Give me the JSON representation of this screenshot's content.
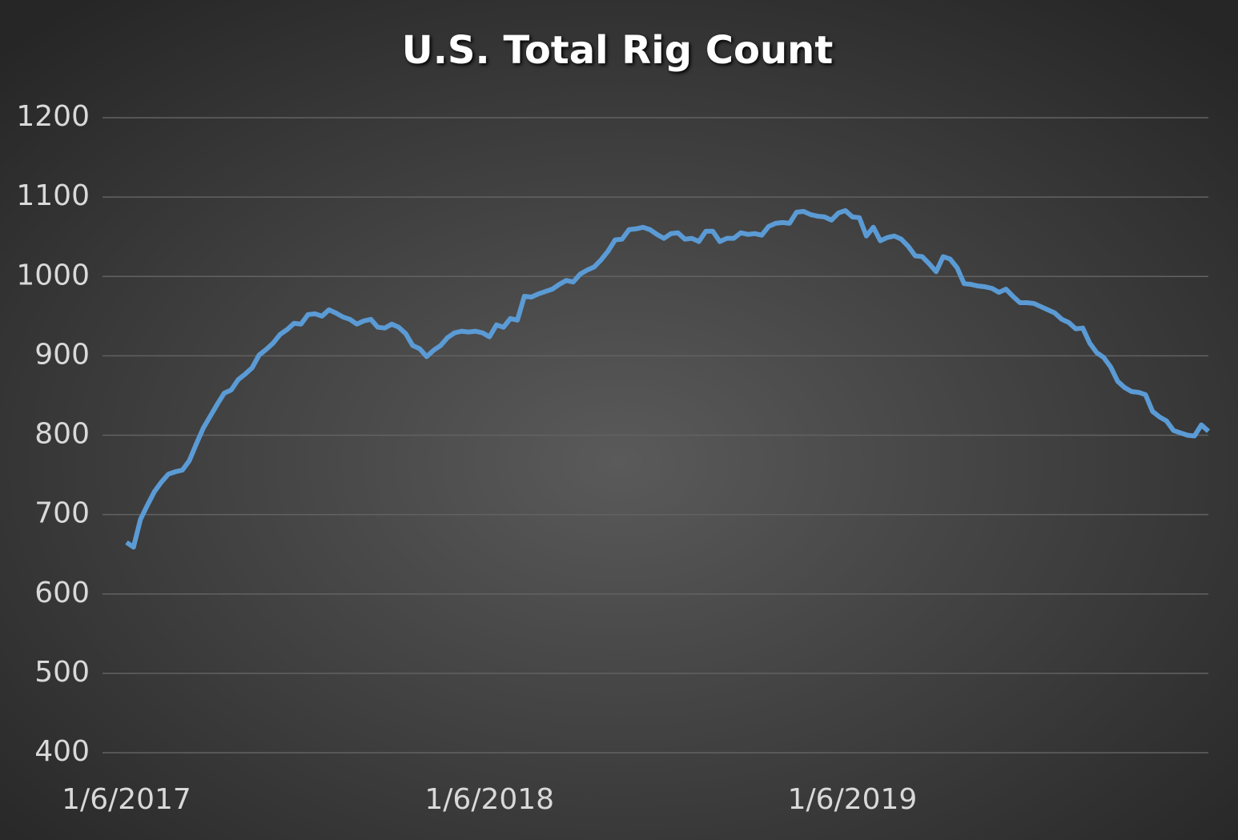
{
  "chart_data": {
    "type": "line",
    "title": "U.S. Total Rig Count",
    "categories": [
      "1/6/2017",
      null,
      null,
      null,
      null,
      null,
      null,
      null,
      null,
      null,
      null,
      null,
      null,
      null,
      null,
      null,
      null,
      null,
      null,
      null,
      null,
      null,
      null,
      null,
      null,
      null,
      null,
      null,
      null,
      null,
      null,
      null,
      null,
      null,
      null,
      null,
      null,
      null,
      null,
      null,
      null,
      null,
      null,
      null,
      null,
      null,
      null,
      null,
      null,
      null,
      null,
      null,
      "1/6/2018",
      null,
      null,
      null,
      null,
      null,
      null,
      null,
      null,
      null,
      null,
      null,
      null,
      null,
      null,
      null,
      null,
      null,
      null,
      null,
      null,
      null,
      null,
      null,
      null,
      null,
      null,
      null,
      null,
      null,
      null,
      null,
      null,
      null,
      null,
      null,
      null,
      null,
      null,
      null,
      null,
      null,
      null,
      null,
      null,
      null,
      null,
      null,
      null,
      null,
      null,
      null,
      "1/6/2019",
      null,
      null,
      null,
      null,
      null,
      null,
      null,
      null,
      null,
      null,
      null,
      null,
      null,
      null,
      null,
      null,
      null,
      null,
      null,
      null,
      null,
      null,
      null,
      null,
      null,
      null,
      null,
      null,
      null,
      null,
      null,
      null,
      null,
      null,
      null,
      null,
      null,
      null,
      null,
      null,
      null,
      null,
      null,
      null,
      null,
      null,
      null,
      null,
      null,
      null,
      null
    ],
    "series": [
      {
        "name": "U.S. Total Rig Count",
        "color": "#5b9bd5",
        "values": [
          665,
          659,
          694,
          712,
          729,
          741,
          751,
          754,
          756,
          768,
          789,
          809,
          824,
          839,
          853,
          857,
          870,
          877,
          885,
          901,
          908,
          916,
          927,
          933,
          941,
          940,
          952,
          953,
          950,
          958,
          954,
          949,
          946,
          940,
          944,
          946,
          936,
          935,
          940,
          936,
          928,
          913,
          909,
          899,
          907,
          913,
          923,
          929,
          931,
          930,
          931,
          929,
          924,
          939,
          936,
          947,
          945,
          975,
          974,
          978,
          981,
          984,
          990,
          995,
          993,
          1003,
          1008,
          1012,
          1021,
          1032,
          1046,
          1047,
          1059,
          1060,
          1062,
          1059,
          1053,
          1048,
          1054,
          1055,
          1047,
          1048,
          1044,
          1057,
          1057,
          1044,
          1048,
          1048,
          1055,
          1053,
          1054,
          1052,
          1063,
          1067,
          1068,
          1067,
          1081,
          1082,
          1078,
          1076,
          1075,
          1071,
          1080,
          1083,
          1075,
          1074,
          1051,
          1062,
          1045,
          1049,
          1051,
          1047,
          1038,
          1026,
          1025,
          1016,
          1006,
          1025,
          1022,
          1011,
          991,
          990,
          988,
          987,
          985,
          980,
          984,
          975,
          967,
          967,
          966,
          962,
          958,
          954,
          946,
          942,
          934,
          935,
          916,
          904,
          898,
          886,
          868,
          860,
          855,
          854,
          851,
          830,
          823,
          818,
          806,
          803,
          800,
          799,
          813,
          805
        ]
      }
    ],
    "ylim": [
      400,
      1200
    ],
    "yticks": [
      400,
      500,
      600,
      700,
      800,
      900,
      1000,
      1100,
      1200
    ],
    "grid": true
  }
}
